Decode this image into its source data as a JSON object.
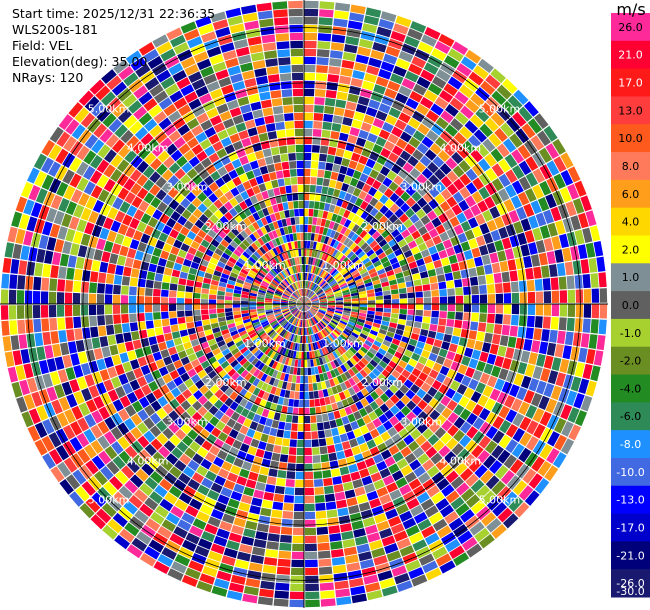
{
  "header": {
    "start_time": "Start time: 2025/12/31 22:36:35",
    "instrument": "WLS200s-181",
    "field": "Field: VEL",
    "elevation": "Elevation(deg): 35.00",
    "nrays": "NRays: 120"
  },
  "chart_data": {
    "type": "ppi",
    "field": "VEL",
    "nrays": 120,
    "elevation_deg": 35.0,
    "range_rings_km": [
      1.0,
      2.0,
      3.0,
      4.0,
      5.0
    ],
    "range_ring_labels": [
      "1.00km",
      "2.00km",
      "3.00km",
      "4.00km",
      "5.00km"
    ],
    "colorbar": {
      "unit": "m/s",
      "ticks": [
        "26.0",
        "21.0",
        "17.0",
        "13.0",
        "10.0",
        "8.0",
        "6.0",
        "4.0",
        "2.0",
        "1.0",
        "0.0",
        "-1.0",
        "-2.0",
        "-4.0",
        "-6.0",
        "-8.0",
        "-10.0",
        "-13.0",
        "-17.0",
        "-21.0",
        "-26.0",
        "-30.0"
      ],
      "colors": [
        "#ff2a9a",
        "#ff0033",
        "#ff1a1a",
        "#ff3d3d",
        "#ff5a1e",
        "#ff7a5a",
        "#ff9e1a",
        "#ffd700",
        "#ffff00",
        "#7f8f96",
        "#606060",
        "#a7d12f",
        "#6b8e23",
        "#228b22",
        "#2e8b57",
        "#1e90ff",
        "#4169e1",
        "#0000ff",
        "#0000cd",
        "#00007a",
        "#191970"
      ]
    }
  }
}
